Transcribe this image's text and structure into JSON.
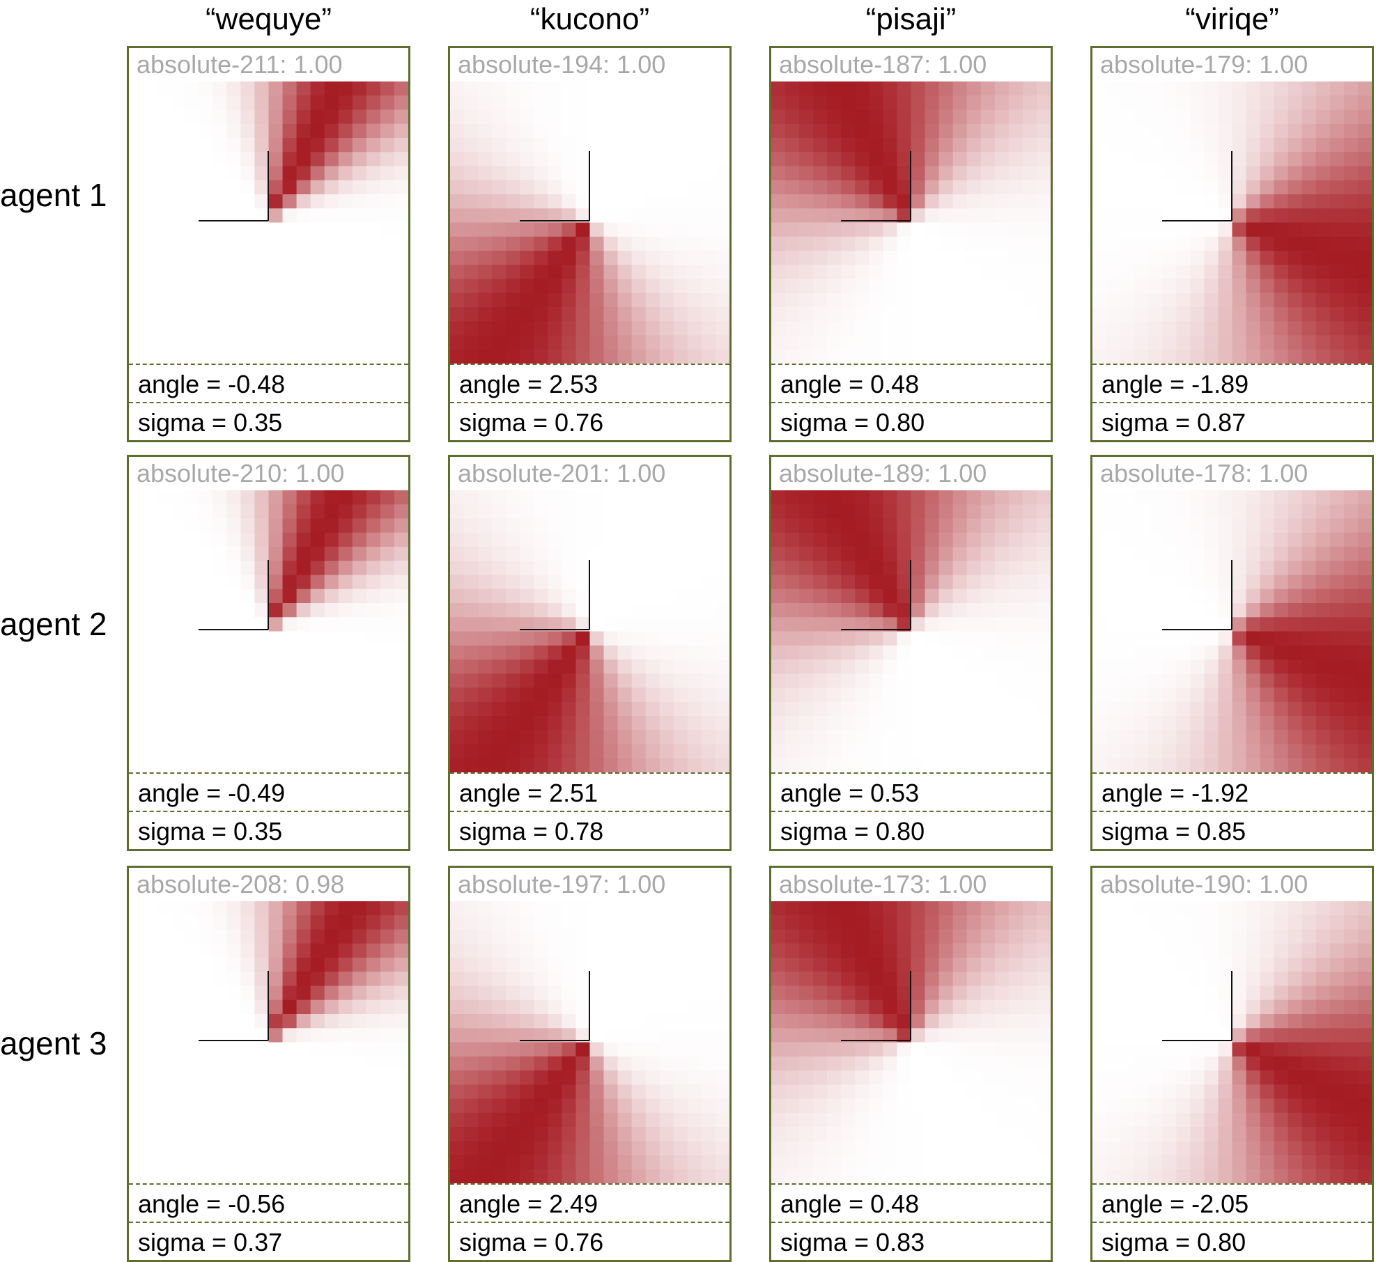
{
  "columns": [
    "“wequye”",
    "“kucono”",
    "“pisaji”",
    "“viriqe”"
  ],
  "rows": [
    "agent 1",
    "agent 2",
    "agent 3"
  ],
  "colors": {
    "border": "#5d6e30",
    "heat_max": "#a61c23",
    "heat_min": "#ffffff",
    "header_text": "#a8a8a8"
  },
  "panels": [
    [
      {
        "header": "absolute-211: 1.00",
        "angle": -0.48,
        "sigma": 0.35,
        "angle_text": "angle = -0.48",
        "sigma_text": "sigma = 0.35"
      },
      {
        "header": "absolute-194: 1.00",
        "angle": 2.53,
        "sigma": 0.76,
        "angle_text": "angle = 2.53",
        "sigma_text": "sigma = 0.76"
      },
      {
        "header": "absolute-187: 1.00",
        "angle": 0.48,
        "sigma": 0.8,
        "angle_text": "angle = 0.48",
        "sigma_text": "sigma = 0.80"
      },
      {
        "header": "absolute-179: 1.00",
        "angle": -1.89,
        "sigma": 0.87,
        "angle_text": "angle = -1.89",
        "sigma_text": "sigma = 0.87"
      }
    ],
    [
      {
        "header": "absolute-210: 1.00",
        "angle": -0.49,
        "sigma": 0.35,
        "angle_text": "angle = -0.49",
        "sigma_text": "sigma = 0.35"
      },
      {
        "header": "absolute-201: 1.00",
        "angle": 2.51,
        "sigma": 0.78,
        "angle_text": "angle = 2.51",
        "sigma_text": "sigma = 0.78"
      },
      {
        "header": "absolute-189: 1.00",
        "angle": 0.53,
        "sigma": 0.8,
        "angle_text": "angle = 0.53",
        "sigma_text": "sigma = 0.80"
      },
      {
        "header": "absolute-178: 1.00",
        "angle": -1.92,
        "sigma": 0.85,
        "angle_text": "angle = -1.92",
        "sigma_text": "sigma = 0.85"
      }
    ],
    [
      {
        "header": "absolute-208: 0.98",
        "angle": -0.56,
        "sigma": 0.37,
        "angle_text": "angle = -0.56",
        "sigma_text": "sigma = 0.37"
      },
      {
        "header": "absolute-197: 1.00",
        "angle": 2.49,
        "sigma": 0.76,
        "angle_text": "angle = 2.49",
        "sigma_text": "sigma = 0.76"
      },
      {
        "header": "absolute-173: 1.00",
        "angle": 0.48,
        "sigma": 0.83,
        "angle_text": "angle = 0.48",
        "sigma_text": "sigma = 0.83"
      },
      {
        "header": "absolute-190: 1.00",
        "angle": -2.05,
        "sigma": 0.8,
        "angle_text": "angle = -2.05",
        "sigma_text": "sigma = 0.80"
      }
    ]
  ]
}
